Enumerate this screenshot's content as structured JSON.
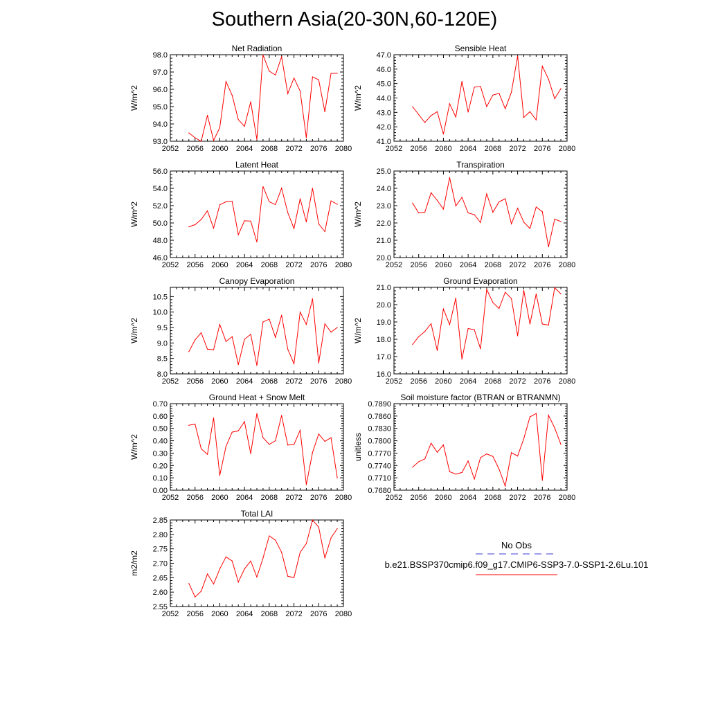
{
  "title": "Southern Asia(20-30N,60-120E)",
  "legend": {
    "obs_label": "No Obs",
    "model_label": "b.e21.BSSP370cmip6.f09_g17.CMIP6-SSP3-7.0-SSP1-2.6Lu.101",
    "obs_color": "#3b3bd6",
    "model_color": "#ff0000"
  },
  "chart_data": [
    {
      "type": "line",
      "title": "Net Radiation",
      "ylabel": "W/m^2",
      "xlim": [
        2052,
        2080
      ],
      "x_ticks": [
        2052,
        2056,
        2060,
        2064,
        2068,
        2072,
        2076,
        2080
      ],
      "ylim": [
        93.0,
        98.0
      ],
      "y_ticks": [
        "93.0",
        "94.0",
        "95.0",
        "96.0",
        "97.0",
        "98.0"
      ],
      "series": [
        {
          "x": [
            2055,
            2056,
            2057,
            2058,
            2059,
            2060,
            2061,
            2062,
            2063,
            2064,
            2065,
            2066,
            2067,
            2068,
            2069,
            2070,
            2071,
            2072,
            2073,
            2074,
            2075,
            2076,
            2077,
            2078,
            2079
          ],
          "y": [
            93.48,
            93.2,
            93.0,
            94.5,
            93.05,
            93.78,
            96.45,
            95.65,
            94.25,
            93.86,
            95.28,
            93.1,
            97.98,
            97.05,
            96.83,
            97.88,
            95.75,
            96.65,
            95.9,
            93.2,
            96.72,
            96.55,
            94.7,
            96.92,
            96.93
          ]
        }
      ]
    },
    {
      "type": "line",
      "title": "Sensible Heat",
      "ylabel": "W/m^2",
      "xlim": [
        2052,
        2080
      ],
      "x_ticks": [
        2052,
        2056,
        2060,
        2064,
        2068,
        2072,
        2076,
        2080
      ],
      "ylim": [
        41.0,
        47.0
      ],
      "y_ticks": [
        "41.0",
        "42.0",
        "43.0",
        "44.0",
        "45.0",
        "46.0",
        "47.0"
      ],
      "series": [
        {
          "x": [
            2055,
            2056,
            2057,
            2058,
            2059,
            2060,
            2061,
            2062,
            2063,
            2064,
            2065,
            2066,
            2067,
            2068,
            2069,
            2070,
            2071,
            2072,
            2073,
            2074,
            2075,
            2076,
            2077,
            2078,
            2079
          ],
          "y": [
            43.4,
            42.85,
            42.3,
            42.78,
            43.05,
            41.5,
            43.6,
            42.68,
            45.15,
            43.02,
            44.75,
            44.8,
            43.4,
            44.2,
            44.32,
            43.25,
            44.4,
            46.9,
            42.65,
            43.05,
            42.48,
            46.2,
            45.3,
            43.95,
            44.65
          ]
        }
      ]
    },
    {
      "type": "line",
      "title": "Latent Heat",
      "ylabel": "W/m^2",
      "xlim": [
        2052,
        2080
      ],
      "x_ticks": [
        2052,
        2056,
        2060,
        2064,
        2068,
        2072,
        2076,
        2080
      ],
      "ylim": [
        46.0,
        56.0
      ],
      "y_ticks": [
        "46.0",
        "48.0",
        "50.0",
        "52.0",
        "54.0",
        "56.0"
      ],
      "series": [
        {
          "x": [
            2055,
            2056,
            2057,
            2058,
            2059,
            2060,
            2061,
            2062,
            2063,
            2064,
            2065,
            2066,
            2067,
            2068,
            2069,
            2070,
            2071,
            2072,
            2073,
            2074,
            2075,
            2076,
            2077,
            2078,
            2079
          ],
          "y": [
            49.55,
            49.8,
            50.4,
            51.4,
            49.4,
            52.1,
            52.45,
            52.5,
            48.65,
            50.25,
            50.22,
            47.8,
            54.2,
            52.45,
            52.12,
            54.02,
            51.2,
            49.35,
            52.8,
            50.12,
            54.0,
            49.9,
            49.0,
            52.55,
            52.15
          ]
        }
      ]
    },
    {
      "type": "line",
      "title": "Transpiration",
      "ylabel": "W/m^2",
      "xlim": [
        2052,
        2080
      ],
      "x_ticks": [
        2052,
        2056,
        2060,
        2064,
        2068,
        2072,
        2076,
        2080
      ],
      "ylim": [
        20.0,
        25.0
      ],
      "y_ticks": [
        "20.0",
        "21.0",
        "22.0",
        "23.0",
        "24.0",
        "25.0"
      ],
      "series": [
        {
          "x": [
            2055,
            2056,
            2057,
            2058,
            2059,
            2060,
            2061,
            2062,
            2063,
            2064,
            2065,
            2066,
            2067,
            2068,
            2069,
            2070,
            2071,
            2072,
            2073,
            2074,
            2075,
            2076,
            2077,
            2078,
            2079
          ],
          "y": [
            23.15,
            22.58,
            22.62,
            23.75,
            23.3,
            22.8,
            24.62,
            22.98,
            23.48,
            22.58,
            22.48,
            22.02,
            23.68,
            22.62,
            23.22,
            23.4,
            21.95,
            22.85,
            22.05,
            21.68,
            22.92,
            22.65,
            20.62,
            22.22,
            22.08
          ]
        }
      ]
    },
    {
      "type": "line",
      "title": "Canopy Evaporation",
      "ylabel": "W/m^2",
      "xlim": [
        2052,
        2080
      ],
      "x_ticks": [
        2052,
        2056,
        2060,
        2064,
        2068,
        2072,
        2076,
        2080
      ],
      "ylim": [
        8.0,
        10.8
      ],
      "y_ticks": [
        "8.0",
        "8.5",
        "9.0",
        "9.5",
        "10.0",
        "10.5"
      ],
      "series": [
        {
          "x": [
            2055,
            2056,
            2057,
            2058,
            2059,
            2060,
            2061,
            2062,
            2063,
            2064,
            2065,
            2066,
            2067,
            2068,
            2069,
            2070,
            2071,
            2072,
            2073,
            2074,
            2075,
            2076,
            2077,
            2078,
            2079
          ],
          "y": [
            8.72,
            9.1,
            9.33,
            8.8,
            8.78,
            9.6,
            9.05,
            9.2,
            8.3,
            9.12,
            9.28,
            8.27,
            9.68,
            9.77,
            9.18,
            9.9,
            8.8,
            8.33,
            10.0,
            9.6,
            10.43,
            8.35,
            9.62,
            9.35,
            9.5
          ]
        }
      ]
    },
    {
      "type": "line",
      "title": "Ground Evaporation",
      "ylabel": "W/m^2",
      "xlim": [
        2052,
        2080
      ],
      "x_ticks": [
        2052,
        2056,
        2060,
        2064,
        2068,
        2072,
        2076,
        2080
      ],
      "ylim": [
        16.0,
        21.0
      ],
      "y_ticks": [
        "16.0",
        "17.0",
        "18.0",
        "19.0",
        "20.0",
        "21.0"
      ],
      "series": [
        {
          "x": [
            2055,
            2056,
            2057,
            2058,
            2059,
            2060,
            2061,
            2062,
            2063,
            2064,
            2065,
            2066,
            2067,
            2068,
            2069,
            2070,
            2071,
            2072,
            2073,
            2074,
            2075,
            2076,
            2077,
            2078,
            2079
          ],
          "y": [
            17.7,
            18.15,
            18.45,
            18.9,
            17.35,
            19.75,
            18.85,
            20.38,
            16.85,
            18.62,
            18.55,
            17.45,
            20.88,
            20.12,
            19.78,
            20.72,
            20.35,
            18.2,
            20.82,
            18.88,
            20.62,
            18.88,
            18.82,
            20.98,
            20.62
          ]
        }
      ]
    },
    {
      "type": "line",
      "title": "Ground Heat + Snow Melt",
      "ylabel": "W/m^2",
      "xlim": [
        2052,
        2080
      ],
      "x_ticks": [
        2052,
        2056,
        2060,
        2064,
        2068,
        2072,
        2076,
        2080
      ],
      "ylim": [
        0.0,
        0.7
      ],
      "y_ticks": [
        "0.00",
        "0.10",
        "0.20",
        "0.30",
        "0.40",
        "0.50",
        "0.60",
        "0.70"
      ],
      "series": [
        {
          "x": [
            2055,
            2056,
            2057,
            2058,
            2059,
            2060,
            2061,
            2062,
            2063,
            2064,
            2065,
            2066,
            2067,
            2068,
            2069,
            2070,
            2071,
            2072,
            2073,
            2074,
            2075,
            2076,
            2077,
            2078,
            2079
          ],
          "y": [
            0.525,
            0.535,
            0.335,
            0.29,
            0.585,
            0.12,
            0.355,
            0.47,
            0.48,
            0.555,
            0.295,
            0.62,
            0.425,
            0.37,
            0.4,
            0.605,
            0.365,
            0.37,
            0.485,
            0.045,
            0.305,
            0.455,
            0.395,
            0.425,
            0.1
          ]
        }
      ]
    },
    {
      "type": "line",
      "title": "Soil moisture factor (BTRAN or BTRANMN)",
      "ylabel": "unitless",
      "xlim": [
        2052,
        2080
      ],
      "x_ticks": [
        2052,
        2056,
        2060,
        2064,
        2068,
        2072,
        2076,
        2080
      ],
      "ylim": [
        0.768,
        0.789
      ],
      "y_ticks": [
        "0.7680",
        "0.7710",
        "0.7740",
        "0.7770",
        "0.7800",
        "0.7830",
        "0.7860",
        "0.7890"
      ],
      "series": [
        {
          "x": [
            2055,
            2056,
            2057,
            2058,
            2059,
            2060,
            2061,
            2062,
            2063,
            2064,
            2065,
            2066,
            2067,
            2068,
            2069,
            2070,
            2071,
            2072,
            2073,
            2074,
            2075,
            2076,
            2077,
            2078,
            2079
          ],
          "y": [
            0.7736,
            0.7749,
            0.7756,
            0.7794,
            0.7772,
            0.779,
            0.7725,
            0.7719,
            0.7723,
            0.7751,
            0.7707,
            0.7759,
            0.7768,
            0.7762,
            0.7731,
            0.769,
            0.7771,
            0.7763,
            0.7805,
            0.7858,
            0.7866,
            0.7704,
            0.7862,
            0.7831,
            0.7791
          ]
        }
      ]
    },
    {
      "type": "line",
      "title": "Total LAI",
      "ylabel": "m2/m2",
      "xlim": [
        2052,
        2080
      ],
      "x_ticks": [
        2052,
        2056,
        2060,
        2064,
        2068,
        2072,
        2076,
        2080
      ],
      "ylim": [
        2.55,
        2.85
      ],
      "y_ticks": [
        "2.55",
        "2.60",
        "2.65",
        "2.70",
        "2.75",
        "2.80",
        "2.85"
      ],
      "series": [
        {
          "x": [
            2055,
            2056,
            2057,
            2058,
            2059,
            2060,
            2061,
            2062,
            2063,
            2064,
            2065,
            2066,
            2067,
            2068,
            2069,
            2070,
            2071,
            2072,
            2073,
            2074,
            2075,
            2076,
            2077,
            2078,
            2079
          ],
          "y": [
            2.63,
            2.583,
            2.603,
            2.663,
            2.628,
            2.68,
            2.722,
            2.708,
            2.635,
            2.68,
            2.708,
            2.652,
            2.718,
            2.795,
            2.78,
            2.738,
            2.655,
            2.65,
            2.738,
            2.768,
            2.85,
            2.825,
            2.718,
            2.788,
            2.82
          ]
        }
      ]
    }
  ]
}
